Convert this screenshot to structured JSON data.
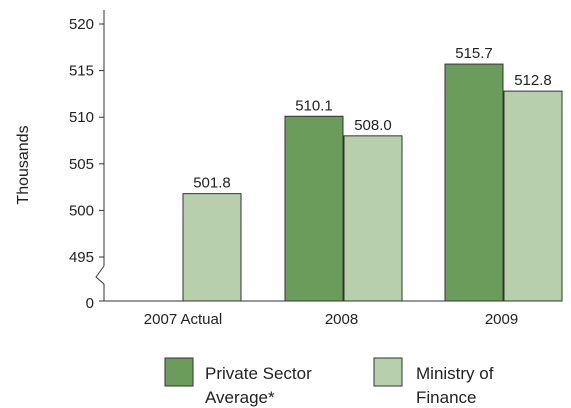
{
  "chart_data": {
    "type": "bar",
    "categories": [
      "2007 Actual",
      "2008",
      "2009"
    ],
    "series": [
      {
        "name": "Private Sector Average*",
        "values": [
          null,
          510.1,
          515.7
        ],
        "labels": [
          "",
          "510.1",
          "515.7"
        ],
        "color": "#6c9c5c"
      },
      {
        "name": "Ministry of Finance",
        "values": [
          501.8,
          508.0,
          512.8
        ],
        "labels": [
          "501.8",
          "508.0",
          "512.8"
        ],
        "color": "#b7cfaa"
      }
    ],
    "ylabel": "Thousands",
    "yticks": [
      "520",
      "515",
      "510",
      "505",
      "500",
      "495",
      "0"
    ],
    "ytick_values": [
      520,
      515,
      510,
      505,
      500,
      495
    ],
    "ylim": [
      490,
      520
    ],
    "axis_break": true,
    "legend": {
      "placement": "bottom",
      "items": [
        {
          "lines": [
            "Private Sector",
            "Average*"
          ],
          "color": "#6c9c5c"
        },
        {
          "lines": [
            "Ministry of",
            "Finance"
          ],
          "color": "#b7cfaa"
        }
      ]
    }
  }
}
